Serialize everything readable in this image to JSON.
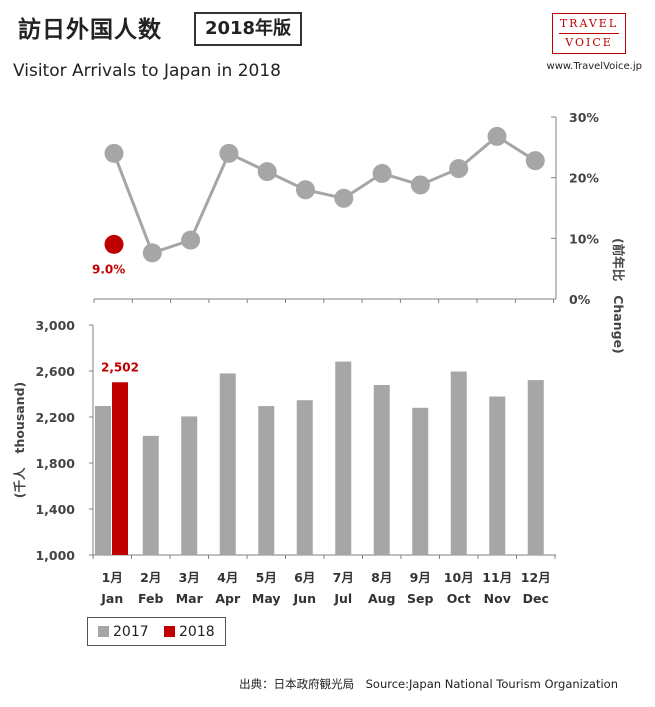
{
  "header": {
    "title_jp": "訪日外国人数",
    "edition": "2018年版",
    "title_en": "Visitor Arrivals to Japan in 2018",
    "logo_line1": "TRAVEL",
    "logo_line2": "VOICE",
    "site": "www.TravelVoice.jp"
  },
  "source": "出典：日本政府観光局　Source:Japan National Tourism Organization",
  "colors": {
    "series_2017": "#a6a6a6",
    "series_2018": "#c00000",
    "axis": "#808080"
  },
  "chart_data": [
    {
      "type": "line",
      "ylabel_jp": "(前年比",
      "ylabel_en": "Change)",
      "ylim": [
        0,
        30
      ],
      "yticks": [
        "0%",
        "10%",
        "20%",
        "30%"
      ],
      "y_axis_side": "right",
      "series": [
        {
          "values": [
            24.0,
            7.6,
            9.7,
            24.0,
            21.0,
            18.0,
            16.6,
            20.7,
            18.8,
            21.5,
            26.8,
            22.8
          ]
        },
        {
          "values": [
            9.0,
            null,
            null,
            null,
            null,
            null,
            null,
            null,
            null,
            null,
            null,
            null
          ],
          "data_label": "9.0%"
        }
      ]
    },
    {
      "type": "bar",
      "months_jp": [
        "1月",
        "2月",
        "3月",
        "4月",
        "5月",
        "6月",
        "7月",
        "8月",
        "9月",
        "10月",
        "11月",
        "12月"
      ],
      "categories": [
        "Jan",
        "Feb",
        "Mar",
        "Apr",
        "May",
        "Jun",
        "Jul",
        "Aug",
        "Sep",
        "Oct",
        "Nov",
        "Dec"
      ],
      "ylabel_jp": "(千人",
      "ylabel_en": "thousand)",
      "ylim": [
        1000,
        3000
      ],
      "yticks": [
        "1,000",
        "1,400",
        "1,800",
        "2,200",
        "2,600",
        "3,000"
      ],
      "series": [
        {
          "name": "2017",
          "values": [
            2296,
            2036,
            2205,
            2579,
            2295,
            2346,
            2682,
            2478,
            2280,
            2595,
            2378,
            2521
          ]
        },
        {
          "name": "2018",
          "values": [
            2502,
            null,
            null,
            null,
            null,
            null,
            null,
            null,
            null,
            null,
            null,
            null
          ],
          "data_label": "2,502"
        }
      ]
    }
  ]
}
